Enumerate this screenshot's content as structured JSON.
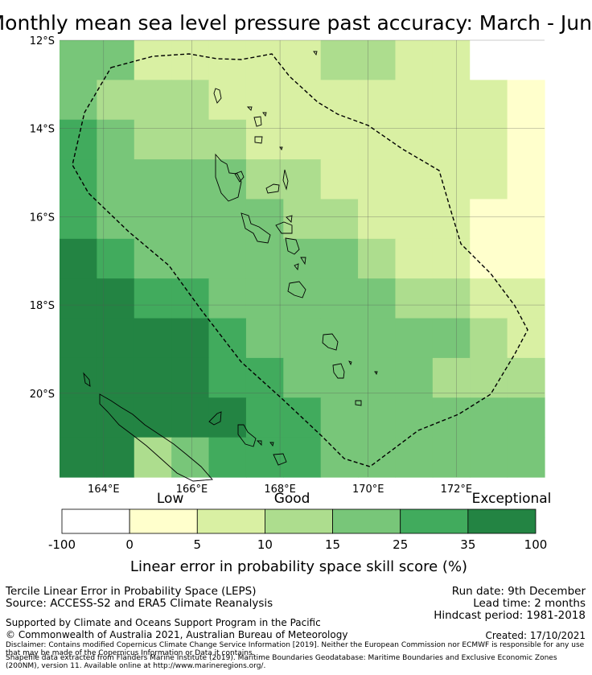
{
  "title": "Monthly mean sea level pressure past accuracy: March - June",
  "map": {
    "lat_labels": [
      "12°S",
      "14°S",
      "16°S",
      "18°S",
      "20°S"
    ],
    "lon_labels": [
      "164°E",
      "166°E",
      "168°E",
      "170°E",
      "172°E"
    ],
    "extent": {
      "lon_min": 163,
      "lon_max": 174,
      "lat_min": -21.9,
      "lat_max": -12
    }
  },
  "legend": {
    "category_labels": [
      "Low",
      "Good",
      "Exceptional"
    ],
    "tick_labels": [
      "-100",
      "0",
      "5",
      "10",
      "15",
      "25",
      "35",
      "100"
    ],
    "colors": [
      "#ffffff",
      "#ffffcc",
      "#d9f0a3",
      "#addd8e",
      "#78c679",
      "#41ab5d",
      "#238443"
    ],
    "axis_label": "Linear error in probability space skill score (%)"
  },
  "info": {
    "line1": "Tercile Linear Error in Probability Space (LEPS)",
    "line2": "Source: ACCESS-S2 and ERA5 Climate Reanalysis",
    "run_date": "Run date: 9th December",
    "lead_time": "Lead time: 2 months",
    "hindcast": "Hindcast period: 1981-2018",
    "support": "Supported by Climate and Oceans Support Program in the Pacific",
    "copyright": "© Commonwealth of Australia 2021, Australian Bureau of Meteorology",
    "created": "Created: 17/10/2021",
    "disclaimer": "Disclaimer: Contains modified Copernicus Climate Change Service Information [2019]. Neither the European Commission nor ECMWF is responsible for any use that may be made of the Copernicus Information or Data it contains.",
    "shapefile": "Shapefile data extracted from Flanders Marine Institute (2019). Maritime Boundaries Geodatabase: Maritime Boundaries and Exclusive Economic Zones (200NM), version 11. Available online at http://www.marineregions.org/."
  },
  "grid": {
    "cols": 13,
    "rows": 11,
    "levels": [
      "4422222332200",
      "4333222222221",
      "5433322222221",
      "5444433222221",
      "5444443322211",
      "6544444432211",
      "6655444443322",
      "6666544444432",
      "6666554444333",
      "6666655444444",
      "6634555444444"
    ]
  }
}
